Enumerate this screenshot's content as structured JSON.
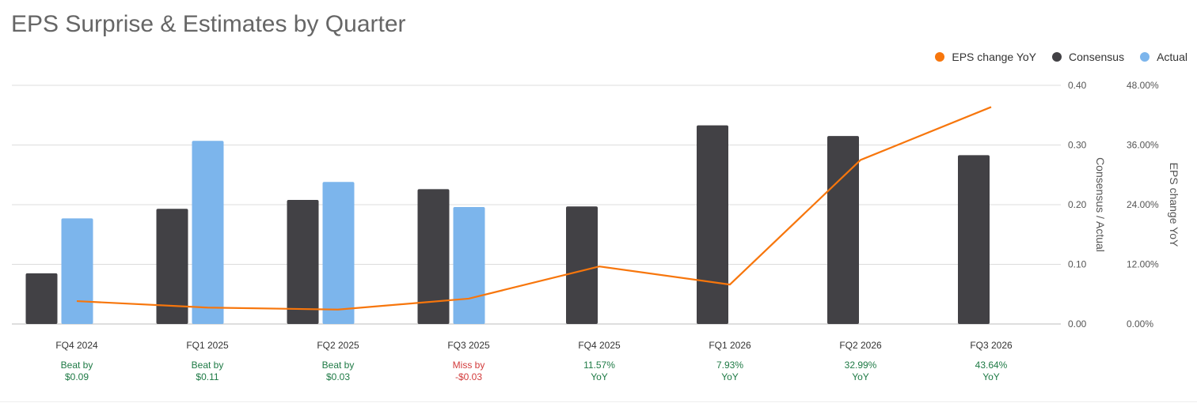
{
  "chart_data": {
    "type": "bar",
    "title": "EPS Surprise & Estimates by Quarter",
    "categories": [
      "FQ4 2024",
      "FQ1 2025",
      "FQ2 2025",
      "FQ3 2025",
      "FQ4 2025",
      "FQ1 2026",
      "FQ2 2026",
      "FQ3 2026"
    ],
    "series": [
      {
        "name": "Consensus",
        "type": "bar",
        "axis": "left",
        "color": "#424145",
        "values": [
          0.085,
          0.193,
          0.208,
          0.226,
          0.197,
          0.333,
          0.315,
          0.283
        ]
      },
      {
        "name": "Actual",
        "type": "bar",
        "axis": "left",
        "color": "#7cb5ec",
        "values": [
          0.177,
          0.307,
          0.238,
          0.196,
          null,
          null,
          null,
          null
        ]
      },
      {
        "name": "EPS change YoY",
        "type": "line",
        "axis": "right",
        "color": "#f7760c",
        "values": [
          4.6,
          3.3,
          2.9,
          5.1,
          11.57,
          7.93,
          32.99,
          43.64
        ]
      }
    ],
    "left_axis": {
      "label": "Consensus / Actual",
      "min": 0,
      "max": 0.4,
      "ticks": [
        "0.00",
        "0.10",
        "0.20",
        "0.30",
        "0.40"
      ]
    },
    "right_axis": {
      "label": "EPS change YoY",
      "min": 0,
      "max": 48,
      "ticks": [
        "0.00%",
        "12.00%",
        "24.00%",
        "36.00%",
        "48.00%"
      ]
    },
    "legend": {
      "placement": "top-right",
      "items": [
        "EPS change YoY",
        "Consensus",
        "Actual"
      ]
    },
    "grid": true,
    "annotations": [
      {
        "line1": "Beat by",
        "line2": "$0.09",
        "color": "#1e7a45"
      },
      {
        "line1": "Beat by",
        "line2": "$0.11",
        "color": "#1e7a45"
      },
      {
        "line1": "Beat by",
        "line2": "$0.03",
        "color": "#1e7a45"
      },
      {
        "line1": "Miss by",
        "line2": "-$0.03",
        "color": "#d23b3b"
      },
      {
        "line1": "11.57%",
        "line2": "YoY",
        "color": "#1e7a45"
      },
      {
        "line1": "7.93%",
        "line2": "YoY",
        "color": "#1e7a45"
      },
      {
        "line1": "32.99%",
        "line2": "YoY",
        "color": "#1e7a45"
      },
      {
        "line1": "43.64%",
        "line2": "YoY",
        "color": "#1e7a45"
      }
    ]
  }
}
